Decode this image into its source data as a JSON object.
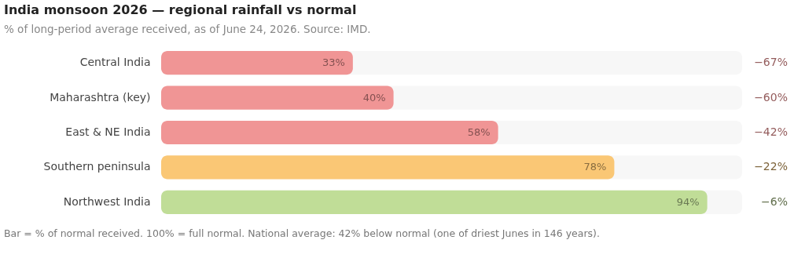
{
  "chart_data": {
    "type": "bar",
    "orientation": "horizontal",
    "title": "India monsoon 2026 — regional rainfall vs normal",
    "subtitle": "% of long-period average received, as of June 24, 2026. Source: IMD.",
    "categories": [
      "Central India",
      "Maharashtra (key)",
      "East & NE India",
      "Southern peninsula",
      "Northwest India"
    ],
    "values": [
      33,
      40,
      58,
      78,
      94
    ],
    "colors": [
      "#f09595",
      "#f09595",
      "#f09595",
      "#fac775",
      "#c0dd97"
    ],
    "value_labels": [
      "33%",
      "40%",
      "58%",
      "78%",
      "94%"
    ],
    "xlim": [
      0,
      100
    ],
    "tick_labels": "y",
    "grid": false,
    "annotations": [
      "−67%",
      "−60%",
      "−42%",
      "−22%",
      "−6%",
      "Bar = % of normal received. 100% = full normal. National average: 42% below normal (one of driest Junes in 146 years)."
    ]
  }
}
